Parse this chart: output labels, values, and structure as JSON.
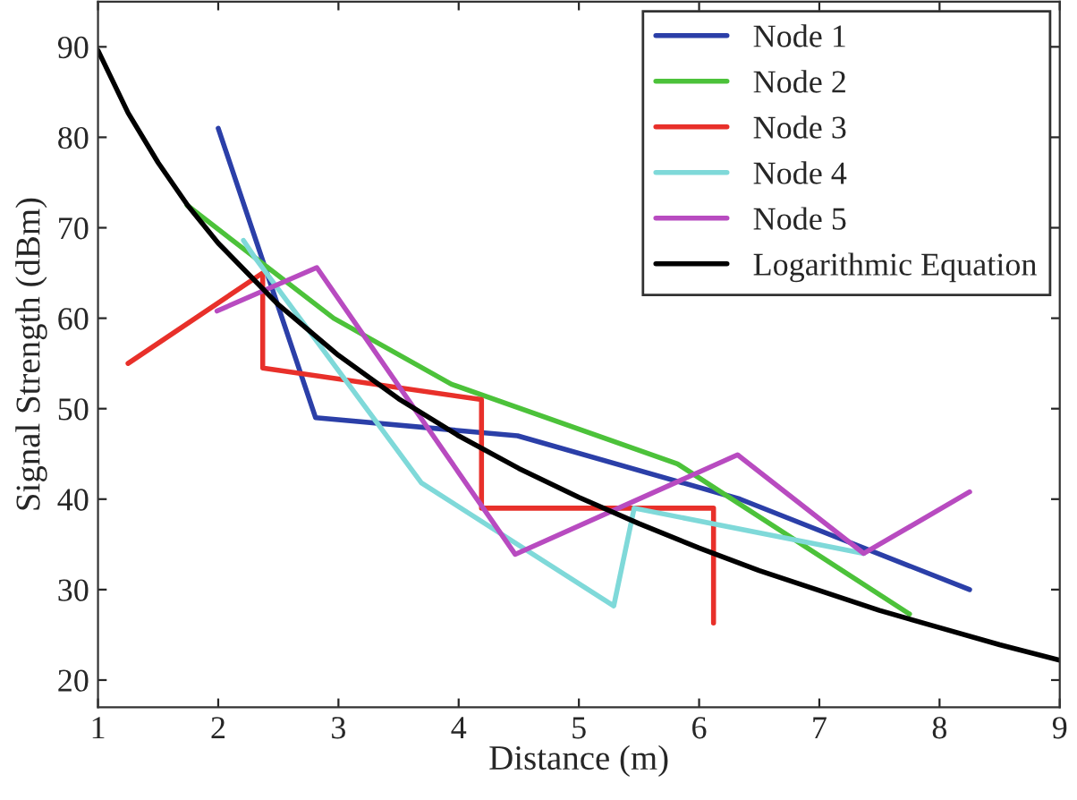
{
  "chart_data": {
    "type": "line",
    "xlabel": "Distance (m)",
    "ylabel": "Signal Strength (dBm)",
    "xlim": [
      1,
      9
    ],
    "xticks": [
      1,
      2,
      3,
      4,
      5,
      6,
      7,
      8,
      9
    ],
    "ylim": [
      17,
      95
    ],
    "yticks": [
      20,
      30,
      40,
      50,
      60,
      70,
      80,
      90
    ],
    "grid": false,
    "legend": "top right",
    "marker": "none",
    "line_style": "solid",
    "series": [
      {
        "name": "Node 1",
        "color": "#2b3fa8",
        "x": [
          2.0,
          2.81,
          4.49,
          6.34,
          8.25
        ],
        "values": [
          81,
          49,
          47,
          40,
          30
        ]
      },
      {
        "name": "Node 2",
        "color": "#4cc23a",
        "x": [
          1.74,
          2.96,
          3.94,
          5.82,
          7.75
        ],
        "values": [
          72.5,
          60,
          52.7,
          43.9,
          27.3
        ]
      },
      {
        "name": "Node 3",
        "color": "#e8302a",
        "x": [
          1.25,
          2.37,
          2.37,
          4.19,
          4.19,
          6.12,
          6.12
        ],
        "values": [
          55,
          65,
          54.5,
          51,
          39,
          39,
          26.3
        ]
      },
      {
        "name": "Node 4",
        "color": "#7fd9d9",
        "x": [
          2.21,
          2.3,
          3.69,
          5.29,
          5.46,
          7.37
        ],
        "values": [
          68.6,
          66.8,
          41.8,
          28.2,
          39,
          34
        ]
      },
      {
        "name": "Node 5",
        "color": "#b84bc0",
        "x": [
          1.99,
          2.82,
          4.47,
          6.32,
          7.37,
          8.25
        ],
        "values": [
          60.8,
          65.6,
          33.9,
          44.9,
          34,
          40.8
        ]
      },
      {
        "name": "Logarithmic Equation",
        "color": "#000000",
        "x": [
          1,
          1.25,
          1.5,
          1.75,
          2,
          2.5,
          3,
          3.5,
          4,
          4.5,
          5,
          5.5,
          6,
          6.5,
          7,
          7.5,
          8,
          8.5,
          9
        ],
        "values": [
          89.6,
          82.7,
          77.2,
          72.4,
          68.3,
          61.5,
          55.9,
          51.1,
          47.0,
          43.4,
          40.2,
          37.3,
          34.6,
          32.1,
          29.9,
          27.7,
          25.8,
          23.9,
          22.2
        ]
      }
    ]
  }
}
